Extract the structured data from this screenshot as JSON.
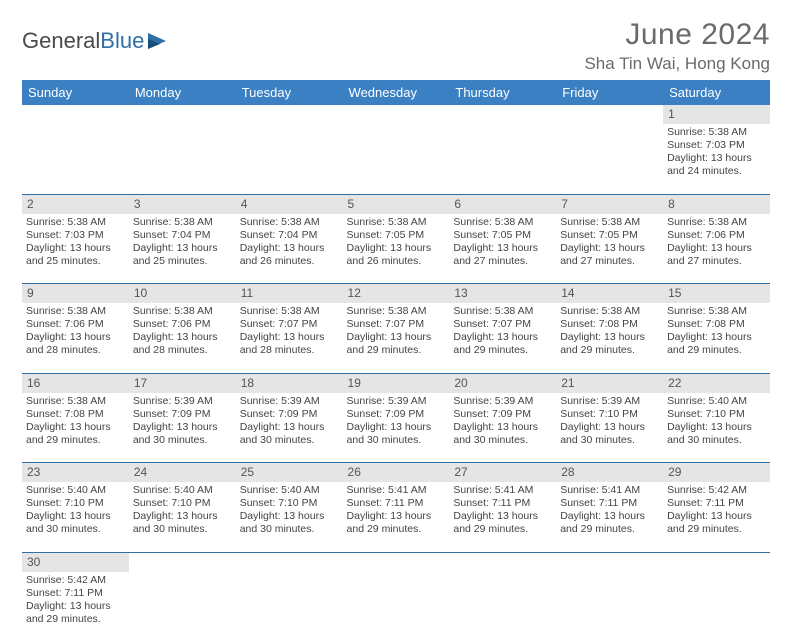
{
  "brand": {
    "word1": "General",
    "word2": "Blue"
  },
  "title": "June 2024",
  "location": "Sha Tin Wai, Hong Kong",
  "colors": {
    "header_bg": "#3a80c3",
    "header_text": "#ffffff",
    "border": "#2f6fa8",
    "daynum_bg": "#e5e5e5",
    "body_text": "#444444",
    "title_text": "#6a6a6a"
  },
  "weekdays": [
    "Sunday",
    "Monday",
    "Tuesday",
    "Wednesday",
    "Thursday",
    "Friday",
    "Saturday"
  ],
  "weeks": [
    {
      "nums": [
        "",
        "",
        "",
        "",
        "",
        "",
        "1"
      ],
      "cells": [
        "",
        "",
        "",
        "",
        "",
        "",
        "Sunrise: 5:38 AM\nSunset: 7:03 PM\nDaylight: 13 hours and 24 minutes."
      ]
    },
    {
      "nums": [
        "2",
        "3",
        "4",
        "5",
        "6",
        "7",
        "8"
      ],
      "cells": [
        "Sunrise: 5:38 AM\nSunset: 7:03 PM\nDaylight: 13 hours and 25 minutes.",
        "Sunrise: 5:38 AM\nSunset: 7:04 PM\nDaylight: 13 hours and 25 minutes.",
        "Sunrise: 5:38 AM\nSunset: 7:04 PM\nDaylight: 13 hours and 26 minutes.",
        "Sunrise: 5:38 AM\nSunset: 7:05 PM\nDaylight: 13 hours and 26 minutes.",
        "Sunrise: 5:38 AM\nSunset: 7:05 PM\nDaylight: 13 hours and 27 minutes.",
        "Sunrise: 5:38 AM\nSunset: 7:05 PM\nDaylight: 13 hours and 27 minutes.",
        "Sunrise: 5:38 AM\nSunset: 7:06 PM\nDaylight: 13 hours and 27 minutes."
      ]
    },
    {
      "nums": [
        "9",
        "10",
        "11",
        "12",
        "13",
        "14",
        "15"
      ],
      "cells": [
        "Sunrise: 5:38 AM\nSunset: 7:06 PM\nDaylight: 13 hours and 28 minutes.",
        "Sunrise: 5:38 AM\nSunset: 7:06 PM\nDaylight: 13 hours and 28 minutes.",
        "Sunrise: 5:38 AM\nSunset: 7:07 PM\nDaylight: 13 hours and 28 minutes.",
        "Sunrise: 5:38 AM\nSunset: 7:07 PM\nDaylight: 13 hours and 29 minutes.",
        "Sunrise: 5:38 AM\nSunset: 7:07 PM\nDaylight: 13 hours and 29 minutes.",
        "Sunrise: 5:38 AM\nSunset: 7:08 PM\nDaylight: 13 hours and 29 minutes.",
        "Sunrise: 5:38 AM\nSunset: 7:08 PM\nDaylight: 13 hours and 29 minutes."
      ]
    },
    {
      "nums": [
        "16",
        "17",
        "18",
        "19",
        "20",
        "21",
        "22"
      ],
      "cells": [
        "Sunrise: 5:38 AM\nSunset: 7:08 PM\nDaylight: 13 hours and 29 minutes.",
        "Sunrise: 5:39 AM\nSunset: 7:09 PM\nDaylight: 13 hours and 30 minutes.",
        "Sunrise: 5:39 AM\nSunset: 7:09 PM\nDaylight: 13 hours and 30 minutes.",
        "Sunrise: 5:39 AM\nSunset: 7:09 PM\nDaylight: 13 hours and 30 minutes.",
        "Sunrise: 5:39 AM\nSunset: 7:09 PM\nDaylight: 13 hours and 30 minutes.",
        "Sunrise: 5:39 AM\nSunset: 7:10 PM\nDaylight: 13 hours and 30 minutes.",
        "Sunrise: 5:40 AM\nSunset: 7:10 PM\nDaylight: 13 hours and 30 minutes."
      ]
    },
    {
      "nums": [
        "23",
        "24",
        "25",
        "26",
        "27",
        "28",
        "29"
      ],
      "cells": [
        "Sunrise: 5:40 AM\nSunset: 7:10 PM\nDaylight: 13 hours and 30 minutes.",
        "Sunrise: 5:40 AM\nSunset: 7:10 PM\nDaylight: 13 hours and 30 minutes.",
        "Sunrise: 5:40 AM\nSunset: 7:10 PM\nDaylight: 13 hours and 30 minutes.",
        "Sunrise: 5:41 AM\nSunset: 7:11 PM\nDaylight: 13 hours and 29 minutes.",
        "Sunrise: 5:41 AM\nSunset: 7:11 PM\nDaylight: 13 hours and 29 minutes.",
        "Sunrise: 5:41 AM\nSunset: 7:11 PM\nDaylight: 13 hours and 29 minutes.",
        "Sunrise: 5:42 AM\nSunset: 7:11 PM\nDaylight: 13 hours and 29 minutes."
      ]
    },
    {
      "nums": [
        "30",
        "",
        "",
        "",
        "",
        "",
        ""
      ],
      "cells": [
        "Sunrise: 5:42 AM\nSunset: 7:11 PM\nDaylight: 13 hours and 29 minutes.",
        "",
        "",
        "",
        "",
        "",
        ""
      ]
    }
  ]
}
